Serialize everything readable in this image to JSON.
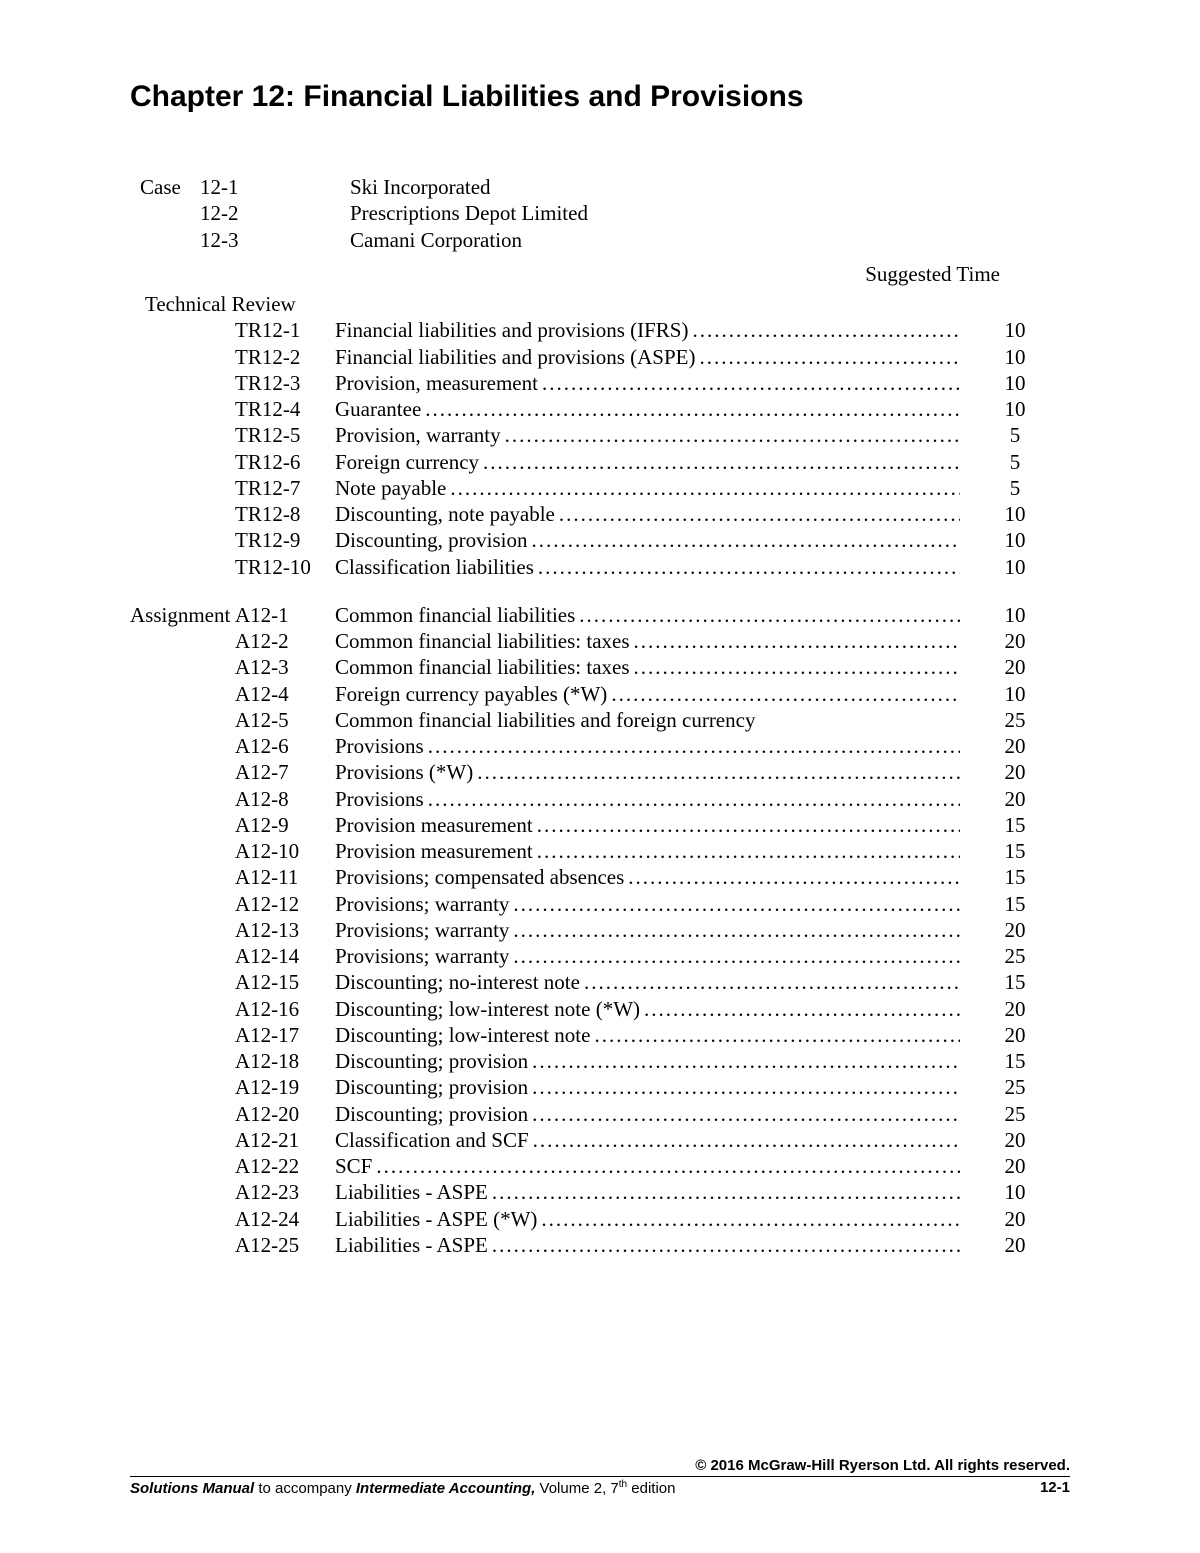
{
  "chapter_title": "Chapter 12: Financial Liabilities and Provisions",
  "case_label": "Case",
  "cases": [
    {
      "num": "12-1",
      "desc": "Ski Incorporated"
    },
    {
      "num": "12-2",
      "desc": "Prescriptions Depot Limited"
    },
    {
      "num": "12-3",
      "desc": "Camani Corporation"
    }
  ],
  "suggested_time_label": "Suggested Time",
  "technical_review_label": "Technical Review",
  "technical_review": [
    {
      "code": "TR12-1",
      "desc": "Financial liabilities and provisions (IFRS)",
      "time": "10"
    },
    {
      "code": "TR12-2",
      "desc": "Financial liabilities and provisions (ASPE)",
      "time": "10"
    },
    {
      "code": "TR12-3",
      "desc": "Provision, measurement",
      "time": "10"
    },
    {
      "code": "TR12-4",
      "desc": "Guarantee",
      "time": "10"
    },
    {
      "code": "TR12-5",
      "desc": "Provision, warranty",
      "time": "5"
    },
    {
      "code": "TR12-6",
      "desc": "Foreign currency",
      "time": "5"
    },
    {
      "code": "TR12-7",
      "desc": "Note payable",
      "time": "5"
    },
    {
      "code": "TR12-8",
      "desc": "Discounting, note payable",
      "time": "10"
    },
    {
      "code": "TR12-9",
      "desc": "Discounting, provision",
      "time": "10"
    },
    {
      "code": "TR12-10",
      "desc": "Classification liabilities",
      "time": "10"
    }
  ],
  "assignment_label": "Assignment",
  "assignments": [
    {
      "code": "A12-1",
      "desc": "Common financial liabilities",
      "time": "10",
      "first": true
    },
    {
      "code": "A12-2",
      "desc": "Common financial liabilities: taxes",
      "time": "20"
    },
    {
      "code": "A12-3",
      "desc": "Common financial liabilities: taxes ",
      "time": "20"
    },
    {
      "code": "A12-4",
      "desc": "Foreign currency payables (*W)",
      "time": "10"
    },
    {
      "code": "A12-5",
      "desc": "Common financial liabilities and foreign currency",
      "time": "25",
      "nodots": true
    },
    {
      "code": "A12-6",
      "desc": "Provisions",
      "time": "20"
    },
    {
      "code": "A12-7",
      "desc": "Provisions (*W)",
      "time": "20"
    },
    {
      "code": "A12-8",
      "desc": "Provisions",
      "time": "20"
    },
    {
      "code": "A12-9",
      "desc": "Provision measurement",
      "time": "15"
    },
    {
      "code": "A12-10",
      "desc": "Provision measurement",
      "time": "15"
    },
    {
      "code": "A12-11",
      "desc": "Provisions; compensated absences",
      "time": "15"
    },
    {
      "code": "A12-12",
      "desc": "Provisions; warranty",
      "time": "15"
    },
    {
      "code": "A12-13",
      "desc": "Provisions; warranty ",
      "time": "20"
    },
    {
      "code": "A12-14",
      "desc": "Provisions; warranty ",
      "time": "25"
    },
    {
      "code": "A12-15",
      "desc": "Discounting; no-interest note",
      "time": "15"
    },
    {
      "code": "A12-16",
      "desc": "Discounting; low-interest note (*W)",
      "time": "20"
    },
    {
      "code": "A12-17",
      "desc": "Discounting; low-interest note",
      "time": "20"
    },
    {
      "code": "A12-18",
      "desc": "Discounting; provision",
      "time": "15"
    },
    {
      "code": "A12-19",
      "desc": "Discounting; provision",
      "time": "25"
    },
    {
      "code": "A12-20",
      "desc": "Discounting; provision",
      "time": "25"
    },
    {
      "code": "A12-21",
      "desc": "Classification and SCF",
      "time": "20"
    },
    {
      "code": "A12-22",
      "desc": "SCF",
      "time": "20"
    },
    {
      "code": "A12-23",
      "desc": "Liabilities - ASPE ",
      "time": "10"
    },
    {
      "code": "A12-24",
      "desc": "Liabilities - ASPE (*W)",
      "time": "20"
    },
    {
      "code": "A12-25",
      "desc": "Liabilities - ASPE",
      "time": "20"
    }
  ],
  "footer": {
    "copyright": "© 2016 McGraw-Hill Ryerson Ltd. All rights reserved.",
    "manual_pre": "Solutions Manual",
    "manual_mid": " to accompany ",
    "manual_title": "Intermediate Accounting,",
    "manual_post": " Volume 2, 7",
    "manual_sup": "th",
    "manual_end": " edition",
    "page_num": "12-1"
  }
}
